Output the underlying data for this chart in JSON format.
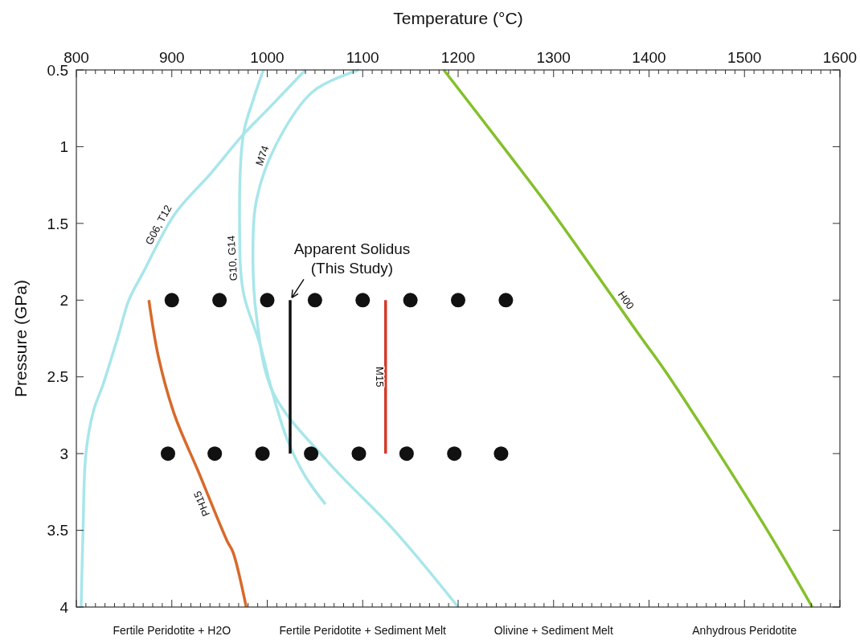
{
  "chart_data": {
    "type": "line",
    "xlabel": "Temperature (°C)",
    "ylabel": "Pressure (GPa)",
    "xlim": [
      800,
      1600
    ],
    "ylim": [
      4,
      0.5
    ],
    "xticks": [
      800,
      {
        "value": 810,
        "label": null
      },
      {
        "value": 820,
        "label": null
      },
      {
        "value": 830,
        "label": null
      },
      {
        "value": 840,
        "label": null
      },
      {
        "value": 850,
        "label": null
      },
      {
        "value": 860,
        "label": null
      },
      {
        "value": 870,
        "label": null
      },
      {
        "value": 880,
        "label": null
      },
      {
        "value": 890,
        "label": null
      },
      900,
      {
        "value": 910,
        "label": null
      },
      {
        "value": 920,
        "label": null
      },
      {
        "value": 930,
        "label": null
      },
      {
        "value": 940,
        "label": null
      },
      {
        "value": 950,
        "label": null
      },
      {
        "value": 960,
        "label": null
      },
      {
        "value": 970,
        "label": null
      },
      {
        "value": 980,
        "label": null
      },
      {
        "value": 990,
        "label": null
      },
      1000,
      {
        "value": 1010,
        "label": null
      },
      {
        "value": 1020,
        "label": null
      },
      {
        "value": 1030,
        "label": null
      },
      {
        "value": 1040,
        "label": null
      },
      {
        "value": 1050,
        "label": null
      },
      {
        "value": 1060,
        "label": null
      },
      {
        "value": 1070,
        "label": null
      },
      {
        "value": 1080,
        "label": null
      },
      {
        "value": 1090,
        "label": null
      },
      1100,
      {
        "value": 1110,
        "label": null
      },
      {
        "value": 1120,
        "label": null
      },
      {
        "value": 1130,
        "label": null
      },
      {
        "value": 1140,
        "label": null
      },
      {
        "value": 1150,
        "label": null
      },
      {
        "value": 1160,
        "label": null
      },
      {
        "value": 1170,
        "label": null
      },
      {
        "value": 1180,
        "label": null
      },
      {
        "value": 1190,
        "label": null
      },
      1200,
      {
        "value": 1210,
        "label": null
      },
      {
        "value": 1220,
        "label": null
      },
      {
        "value": 1230,
        "label": null
      },
      {
        "value": 1240,
        "label": null
      },
      {
        "value": 1250,
        "label": null
      },
      {
        "value": 1260,
        "label": null
      },
      {
        "value": 1270,
        "label": null
      },
      {
        "value": 1280,
        "label": null
      },
      {
        "value": 1290,
        "label": null
      },
      1300,
      {
        "value": 1310,
        "label": null
      },
      {
        "value": 1320,
        "label": null
      },
      {
        "value": 1330,
        "label": null
      },
      {
        "value": 1340,
        "label": null
      },
      {
        "value": 1350,
        "label": null
      },
      {
        "value": 1360,
        "label": null
      },
      {
        "value": 1370,
        "label": null
      },
      {
        "value": 1380,
        "label": null
      },
      {
        "value": 1390,
        "label": null
      },
      1400,
      {
        "value": 1410,
        "label": null
      },
      {
        "value": 1420,
        "label": null
      },
      {
        "value": 1430,
        "label": null
      },
      {
        "value": 1440,
        "label": null
      },
      {
        "value": 1450,
        "label": null
      },
      {
        "value": 1460,
        "label": null
      },
      {
        "value": 1470,
        "label": null
      },
      {
        "value": 1480,
        "label": null
      },
      {
        "value": 1490,
        "label": null
      },
      1500,
      {
        "value": 1510,
        "label": null
      },
      {
        "value": 1520,
        "label": null
      },
      {
        "value": 1530,
        "label": null
      },
      {
        "value": 1540,
        "label": null
      },
      {
        "value": 1550,
        "label": null
      },
      {
        "value": 1560,
        "label": null
      },
      {
        "value": 1570,
        "label": null
      },
      {
        "value": 1580,
        "label": null
      },
      {
        "value": 1590,
        "label": null
      },
      1600
    ],
    "yticks": [
      0.5,
      1,
      1.5,
      2,
      2.5,
      3,
      3.5,
      4
    ],
    "series": [
      {
        "name": "G06, T12",
        "color": "#a8e6ea",
        "x": [
          1040,
          1000,
          975,
          940,
          903,
          870,
          855,
          844,
          828,
          818,
          810,
          807,
          805
        ],
        "values": [
          0.5,
          0.76,
          0.92,
          1.18,
          1.44,
          1.82,
          2.0,
          2.23,
          2.55,
          2.72,
          3.0,
          3.5,
          4.0
        ]
      },
      {
        "name": "G10, G14",
        "color": "#a8e6ea",
        "x": [
          996,
          985,
          975,
          971,
          975,
          992,
          1004,
          1021,
          1040,
          1061
        ],
        "values": [
          0.5,
          0.7,
          0.92,
          1.51,
          1.95,
          2.28,
          2.57,
          2.91,
          3.15,
          3.33
        ]
      },
      {
        "name": "M74",
        "color": "#a8e6ea",
        "x": [
          1096,
          1048,
          1009,
          989,
          985,
          989,
          1006,
          1063,
          1133,
          1200
        ],
        "values": [
          0.5,
          0.64,
          0.99,
          1.34,
          1.68,
          2.12,
          2.6,
          3.05,
          3.5,
          4.0
        ]
      },
      {
        "name": "PH15",
        "color": "#d8692a",
        "x": [
          876,
          886,
          903,
          928,
          958,
          964,
          978
        ],
        "values": [
          2.0,
          2.37,
          2.75,
          3.12,
          3.57,
          3.64,
          4.0
        ]
      },
      {
        "name": "H00",
        "color": "#84c02b",
        "x": [
          1185,
          1252,
          1297,
          1389,
          1420,
          1520,
          1571
        ],
        "values": [
          0.5,
          1.04,
          1.41,
          2.22,
          2.49,
          3.46,
          4.0
        ]
      },
      {
        "color": "#111111",
        "x": [
          1024,
          1024
        ],
        "values": [
          2,
          3
        ]
      },
      {
        "name": "M15",
        "color": "#d43a2a",
        "x": [
          1124,
          1124
        ],
        "values": [
          2,
          3
        ]
      },
      {
        "type": "scatter",
        "marker": "circle",
        "color": "#111111",
        "x": [
          900,
          950,
          1000,
          1050,
          1100,
          1150,
          1200,
          1250,
          896,
          945,
          995,
          1046,
          1096,
          1146,
          1196,
          1245
        ],
        "values": [
          2,
          2,
          2,
          2,
          2,
          2,
          2,
          2,
          3,
          3,
          3,
          3,
          3,
          3,
          3,
          3
        ]
      }
    ],
    "annotations": [
      {
        "text": "Apparent Solidus\n(This Study)",
        "x": 1024,
        "y": 2
      },
      "Fertile Peridotite + H2O",
      "Fertile Peridotite + Sediment Melt",
      "Olivine + Sediment Melt",
      "Anhydrous Peridotite"
    ]
  }
}
